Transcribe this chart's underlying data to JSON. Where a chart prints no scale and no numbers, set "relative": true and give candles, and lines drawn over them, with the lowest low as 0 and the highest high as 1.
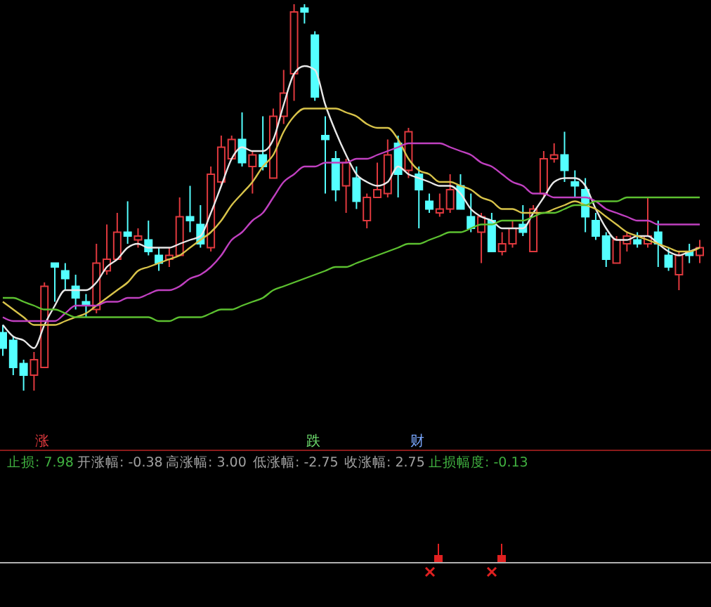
{
  "chart_data": {
    "type": "candlestick",
    "relative": true,
    "categories": [
      null,
      null,
      null,
      null,
      null,
      null,
      null,
      null,
      null,
      null,
      null,
      null,
      null,
      null,
      null,
      null,
      null,
      null,
      null,
      null,
      null,
      null,
      null,
      null,
      null,
      null,
      null,
      null,
      null,
      null,
      null,
      null,
      null,
      null,
      null,
      null,
      null,
      null,
      null,
      null,
      null,
      null,
      null,
      null,
      null,
      null,
      null,
      null,
      null,
      null,
      null,
      null,
      null,
      null,
      null,
      null,
      null,
      null,
      null,
      null,
      null,
      null,
      null,
      null,
      null,
      null,
      null,
      null
    ],
    "ohlc": [
      [
        0.15,
        0.17,
        0.09,
        0.11
      ],
      [
        0.13,
        0.14,
        0.04,
        0.06
      ],
      [
        0.07,
        0.08,
        0,
        0.04
      ],
      [
        0.04,
        0.1,
        0,
        0.08
      ],
      [
        0.06,
        0.28,
        0.06,
        0.27
      ],
      [
        0.33,
        0.33,
        0.23,
        0.32
      ],
      [
        0.31,
        0.33,
        0.26,
        0.29
      ],
      [
        0.27,
        0.3,
        0.21,
        0.24
      ],
      [
        0.23,
        0.25,
        0.19,
        0.22
      ],
      [
        0.21,
        0.38,
        0.2,
        0.33
      ],
      [
        0.31,
        0.43,
        0.3,
        0.34
      ],
      [
        0.34,
        0.46,
        0.34,
        0.41
      ],
      [
        0.41,
        0.49,
        0.38,
        0.4
      ],
      [
        0.39,
        0.42,
        0.37,
        0.4
      ],
      [
        0.39,
        0.44,
        0.35,
        0.36
      ],
      [
        0.35,
        0.37,
        0.31,
        0.33
      ],
      [
        0.34,
        0.37,
        0.32,
        0.35
      ],
      [
        0.35,
        0.5,
        0.35,
        0.45
      ],
      [
        0.45,
        0.53,
        0.41,
        0.44
      ],
      [
        0.43,
        0.48,
        0.37,
        0.38
      ],
      [
        0.37,
        0.58,
        0.36,
        0.56
      ],
      [
        0.54,
        0.66,
        0.53,
        0.63
      ],
      [
        0.6,
        0.66,
        0.6,
        0.65
      ],
      [
        0.65,
        0.72,
        0.58,
        0.59
      ],
      [
        0.58,
        0.62,
        0.51,
        0.61
      ],
      [
        0.61,
        0.71,
        0.57,
        0.58
      ],
      [
        0.55,
        0.73,
        0.55,
        0.71
      ],
      [
        0.71,
        0.83,
        0.69,
        0.77
      ],
      [
        0.82,
        1,
        0.75,
        0.98
      ],
      [
        0.99,
        1,
        0.95,
        0.98
      ],
      [
        0.92,
        0.93,
        0.75,
        0.76
      ],
      [
        0.66,
        0.71,
        0.51,
        0.65
      ],
      [
        0.6,
        0.62,
        0.49,
        0.52
      ],
      [
        0.53,
        0.6,
        0.46,
        0.59
      ],
      [
        0.55,
        0.58,
        0.47,
        0.49
      ],
      [
        0.44,
        0.51,
        0.42,
        0.5
      ],
      [
        0.5,
        0.59,
        0.5,
        0.52
      ],
      [
        0.51,
        0.65,
        0.5,
        0.61
      ],
      [
        0.64,
        0.66,
        0.5,
        0.56
      ],
      [
        0.57,
        0.68,
        0.55,
        0.67
      ],
      [
        0.56,
        0.58,
        0.42,
        0.52
      ],
      [
        0.49,
        0.51,
        0.46,
        0.47
      ],
      [
        0.46,
        0.51,
        0.45,
        0.47
      ],
      [
        0.47,
        0.56,
        0.46,
        0.52
      ],
      [
        0.53,
        0.56,
        0.47,
        0.47
      ],
      [
        0.45,
        0.51,
        0.41,
        0.42
      ],
      [
        0.41,
        0.46,
        0.33,
        0.45
      ],
      [
        0.44,
        0.46,
        0.36,
        0.36
      ],
      [
        0.36,
        0.41,
        0.35,
        0.38
      ],
      [
        0.38,
        0.44,
        0.37,
        0.42
      ],
      [
        0.43,
        0.48,
        0.4,
        0.41
      ],
      [
        0.36,
        0.48,
        0.36,
        0.47
      ],
      [
        0.51,
        0.62,
        0.5,
        0.6
      ],
      [
        0.6,
        0.64,
        0.59,
        0.61
      ],
      [
        0.61,
        0.67,
        0.54,
        0.57
      ],
      [
        0.54,
        0.57,
        0.5,
        0.53
      ],
      [
        0.52,
        0.55,
        0.41,
        0.45
      ],
      [
        0.44,
        0.46,
        0.39,
        0.4
      ],
      [
        0.4,
        0.41,
        0.32,
        0.34
      ],
      [
        0.33,
        0.4,
        0.33,
        0.39
      ],
      [
        0.38,
        0.41,
        0.36,
        0.4
      ],
      [
        0.39,
        0.41,
        0.37,
        0.38
      ],
      [
        0.38,
        0.5,
        0.37,
        0.4
      ],
      [
        0.41,
        0.44,
        0.32,
        0.38
      ],
      [
        0.35,
        0.37,
        0.31,
        0.32
      ],
      [
        0.3,
        0.36,
        0.26,
        0.35
      ],
      [
        0.36,
        0.38,
        0.33,
        0.35
      ],
      [
        0.35,
        0.39,
        0.33,
        0.37
      ]
    ],
    "series": [
      {
        "type": "line",
        "color": "#e8e8e8",
        "values": [
          0.17,
          0.14,
          0.13,
          0.11,
          0.17,
          0.22,
          0.26,
          0.26,
          0.26,
          0.28,
          0.32,
          0.34,
          0.37,
          0.38,
          0.37,
          0.37,
          0.37,
          0.38,
          0.39,
          0.4,
          0.46,
          0.53,
          0.6,
          0.63,
          0.62,
          0.62,
          0.65,
          0.74,
          0.82,
          0.84,
          0.83,
          0.74,
          0.67,
          0.61,
          0.56,
          0.54,
          0.53,
          0.54,
          0.58,
          0.56,
          0.55,
          0.54,
          0.53,
          0.53,
          0.51,
          0.47,
          0.45,
          0.44,
          0.42,
          0.42,
          0.42,
          0.46,
          0.5,
          0.54,
          0.55,
          0.55,
          0.53,
          0.47,
          0.42,
          0.39,
          0.39,
          0.4,
          0.4,
          0.38,
          0.36,
          0.35,
          0.36,
          0.37
        ]
      },
      {
        "type": "line",
        "color": "#d8c34a",
        "values": [
          0.23,
          0.21,
          0.19,
          0.17,
          0.17,
          0.17,
          0.18,
          0.19,
          0.2,
          0.22,
          0.24,
          0.26,
          0.28,
          0.31,
          0.32,
          0.33,
          0.34,
          0.35,
          0.37,
          0.39,
          0.41,
          0.44,
          0.48,
          0.51,
          0.54,
          0.58,
          0.61,
          0.67,
          0.71,
          0.73,
          0.73,
          0.73,
          0.73,
          0.72,
          0.71,
          0.69,
          0.68,
          0.68,
          0.65,
          0.6,
          0.57,
          0.56,
          0.54,
          0.54,
          0.53,
          0.52,
          0.5,
          0.49,
          0.47,
          0.47,
          0.46,
          0.46,
          0.46,
          0.47,
          0.48,
          0.49,
          0.48,
          0.47,
          0.45,
          0.43,
          0.41,
          0.4,
          0.39,
          0.38,
          0.37,
          0.36,
          0.36,
          0.37
        ]
      },
      {
        "type": "line",
        "color": "#c040c0",
        "values": [
          0.19,
          0.18,
          0.18,
          0.18,
          0.18,
          0.18,
          0.2,
          0.22,
          0.22,
          0.22,
          0.23,
          0.23,
          0.24,
          0.24,
          0.25,
          0.26,
          0.26,
          0.27,
          0.29,
          0.3,
          0.32,
          0.35,
          0.39,
          0.41,
          0.44,
          0.46,
          0.5,
          0.54,
          0.56,
          0.58,
          0.58,
          0.59,
          0.59,
          0.59,
          0.6,
          0.6,
          0.61,
          0.62,
          0.63,
          0.64,
          0.64,
          0.64,
          0.64,
          0.63,
          0.62,
          0.61,
          0.59,
          0.58,
          0.56,
          0.54,
          0.53,
          0.51,
          0.51,
          0.5,
          0.5,
          0.5,
          0.5,
          0.49,
          0.47,
          0.46,
          0.45,
          0.44,
          0.44,
          0.43,
          0.43,
          0.43,
          0.43,
          0.43
        ]
      },
      {
        "type": "line",
        "color": "#5cc030",
        "values": [
          0.24,
          0.24,
          0.23,
          0.22,
          0.21,
          0.21,
          0.2,
          0.19,
          0.19,
          0.19,
          0.19,
          0.19,
          0.19,
          0.19,
          0.19,
          0.18,
          0.18,
          0.19,
          0.19,
          0.19,
          0.2,
          0.21,
          0.21,
          0.22,
          0.23,
          0.24,
          0.26,
          0.27,
          0.28,
          0.29,
          0.3,
          0.31,
          0.32,
          0.32,
          0.33,
          0.34,
          0.35,
          0.36,
          0.37,
          0.38,
          0.38,
          0.39,
          0.4,
          0.41,
          0.41,
          0.42,
          0.43,
          0.43,
          0.44,
          0.44,
          0.44,
          0.45,
          0.46,
          0.46,
          0.47,
          0.48,
          0.48,
          0.49,
          0.49,
          0.49,
          0.5,
          0.5,
          0.5,
          0.5,
          0.5,
          0.5,
          0.5,
          0.5
        ]
      }
    ],
    "annotations": [
      "涨",
      "跌",
      "财",
      "止损: 7.98",
      "开涨幅: -0.38",
      "高涨幅: 3.00",
      "低涨幅: -2.75",
      "收涨幅: 2.75",
      "止损幅度: -0.13"
    ],
    "data_labels": false
  }
}
